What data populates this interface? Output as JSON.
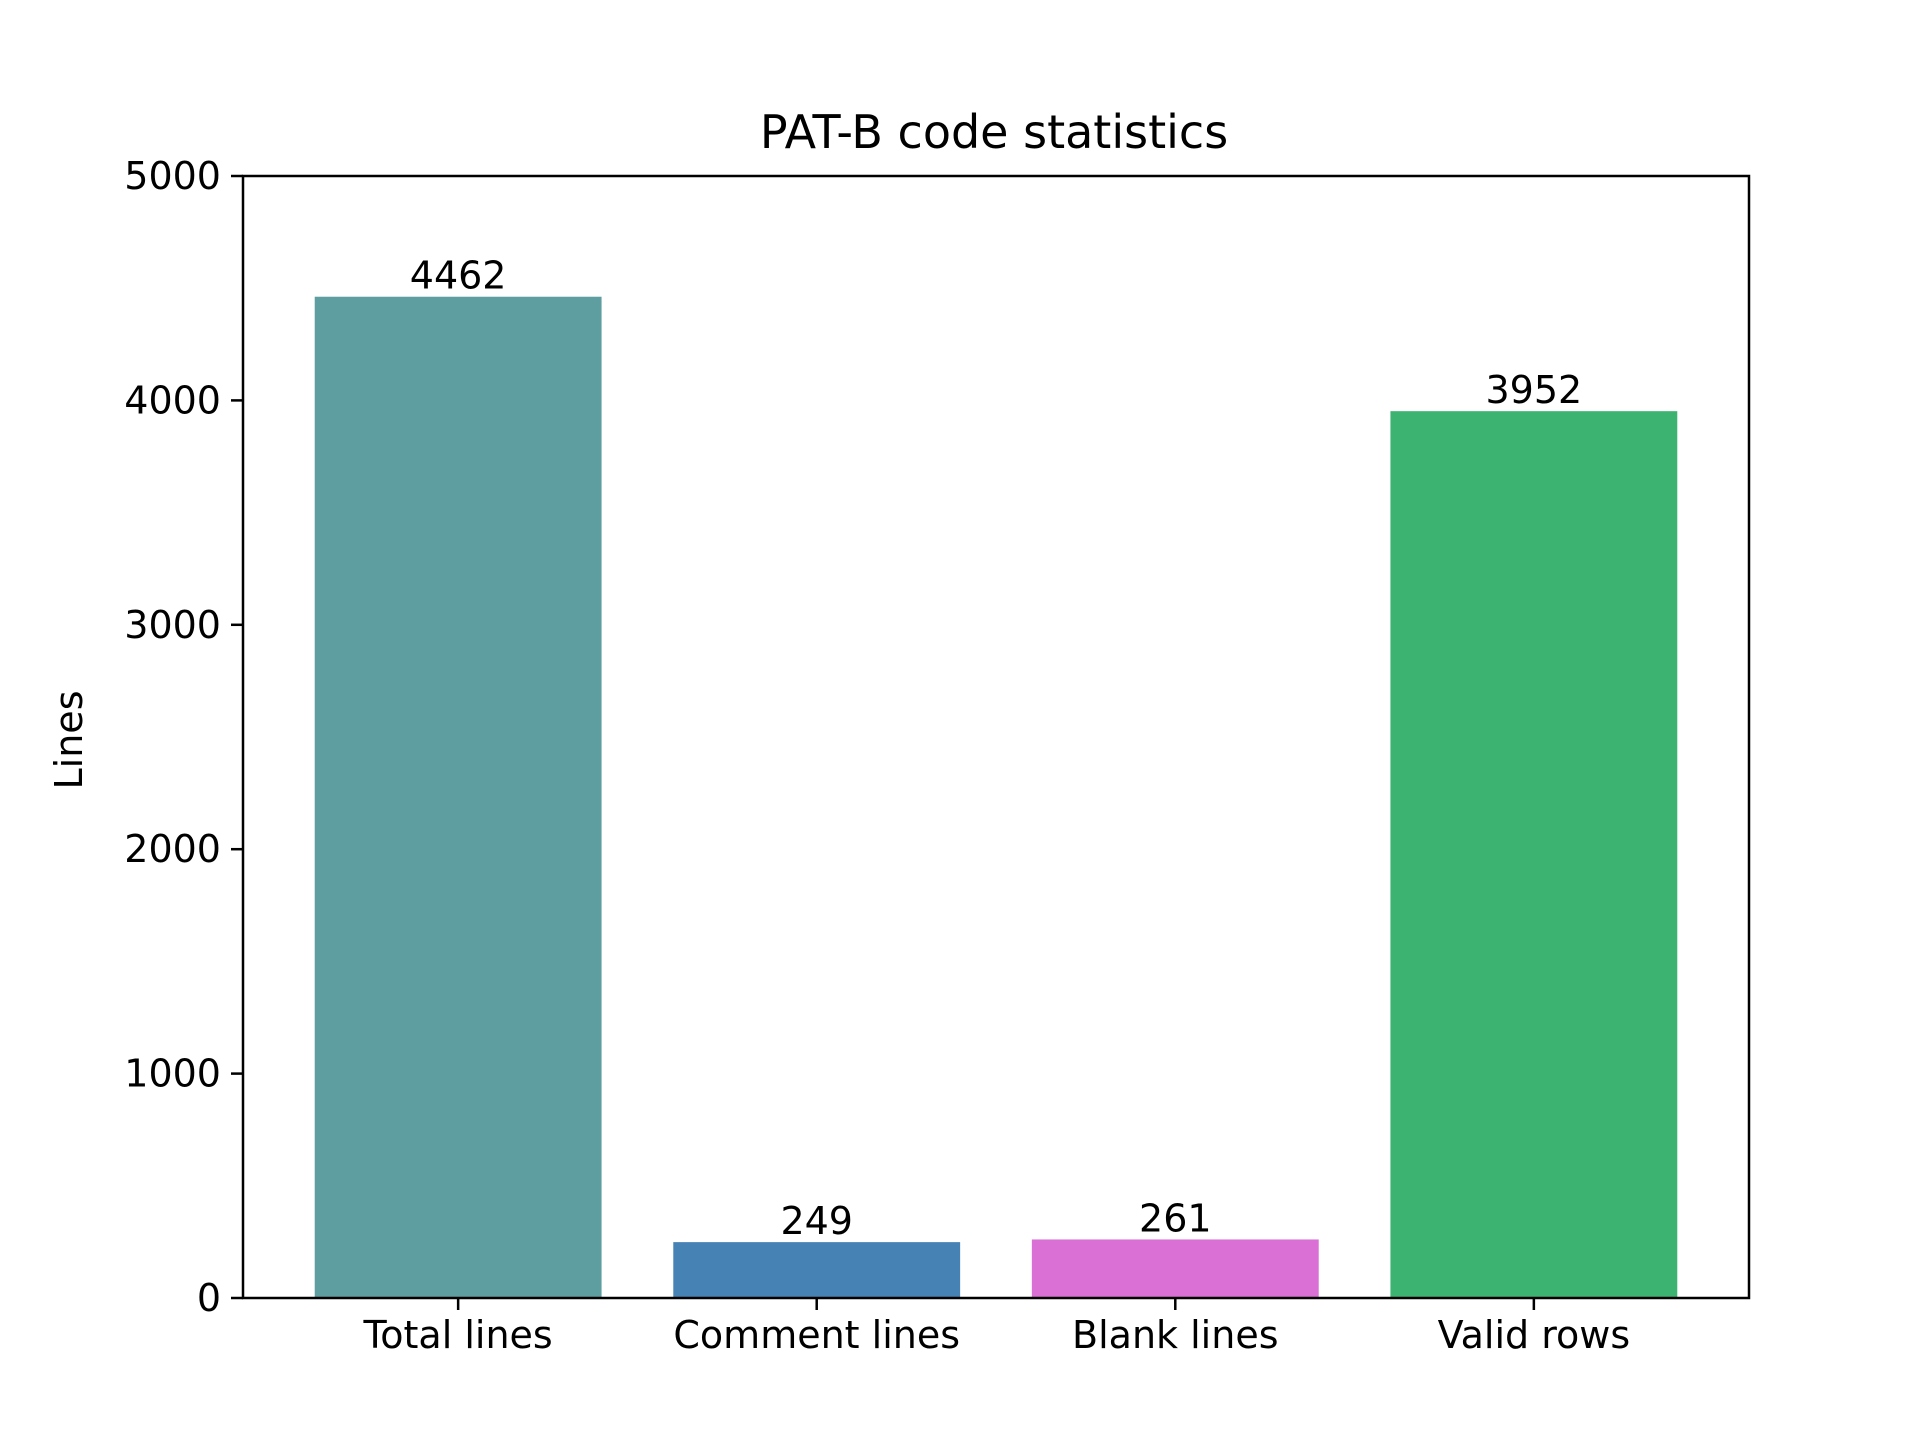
{
  "chart_data": {
    "type": "bar",
    "title": "PAT-B code statistics",
    "xlabel": "",
    "ylabel": "Lines",
    "ylim": [
      0,
      5000
    ],
    "yticks": [
      0,
      1000,
      2000,
      3000,
      4000,
      5000
    ],
    "categories": [
      "Total lines",
      "Comment lines",
      "Blank lines",
      "Valid rows"
    ],
    "values": [
      4462,
      249,
      261,
      3952
    ],
    "data_labels": [
      "4462",
      "249",
      "261",
      "3952"
    ],
    "colors": [
      "#5f9ea0",
      "#4682b4",
      "#da70d6",
      "#3cb371"
    ],
    "grid": false,
    "legend": "none"
  }
}
